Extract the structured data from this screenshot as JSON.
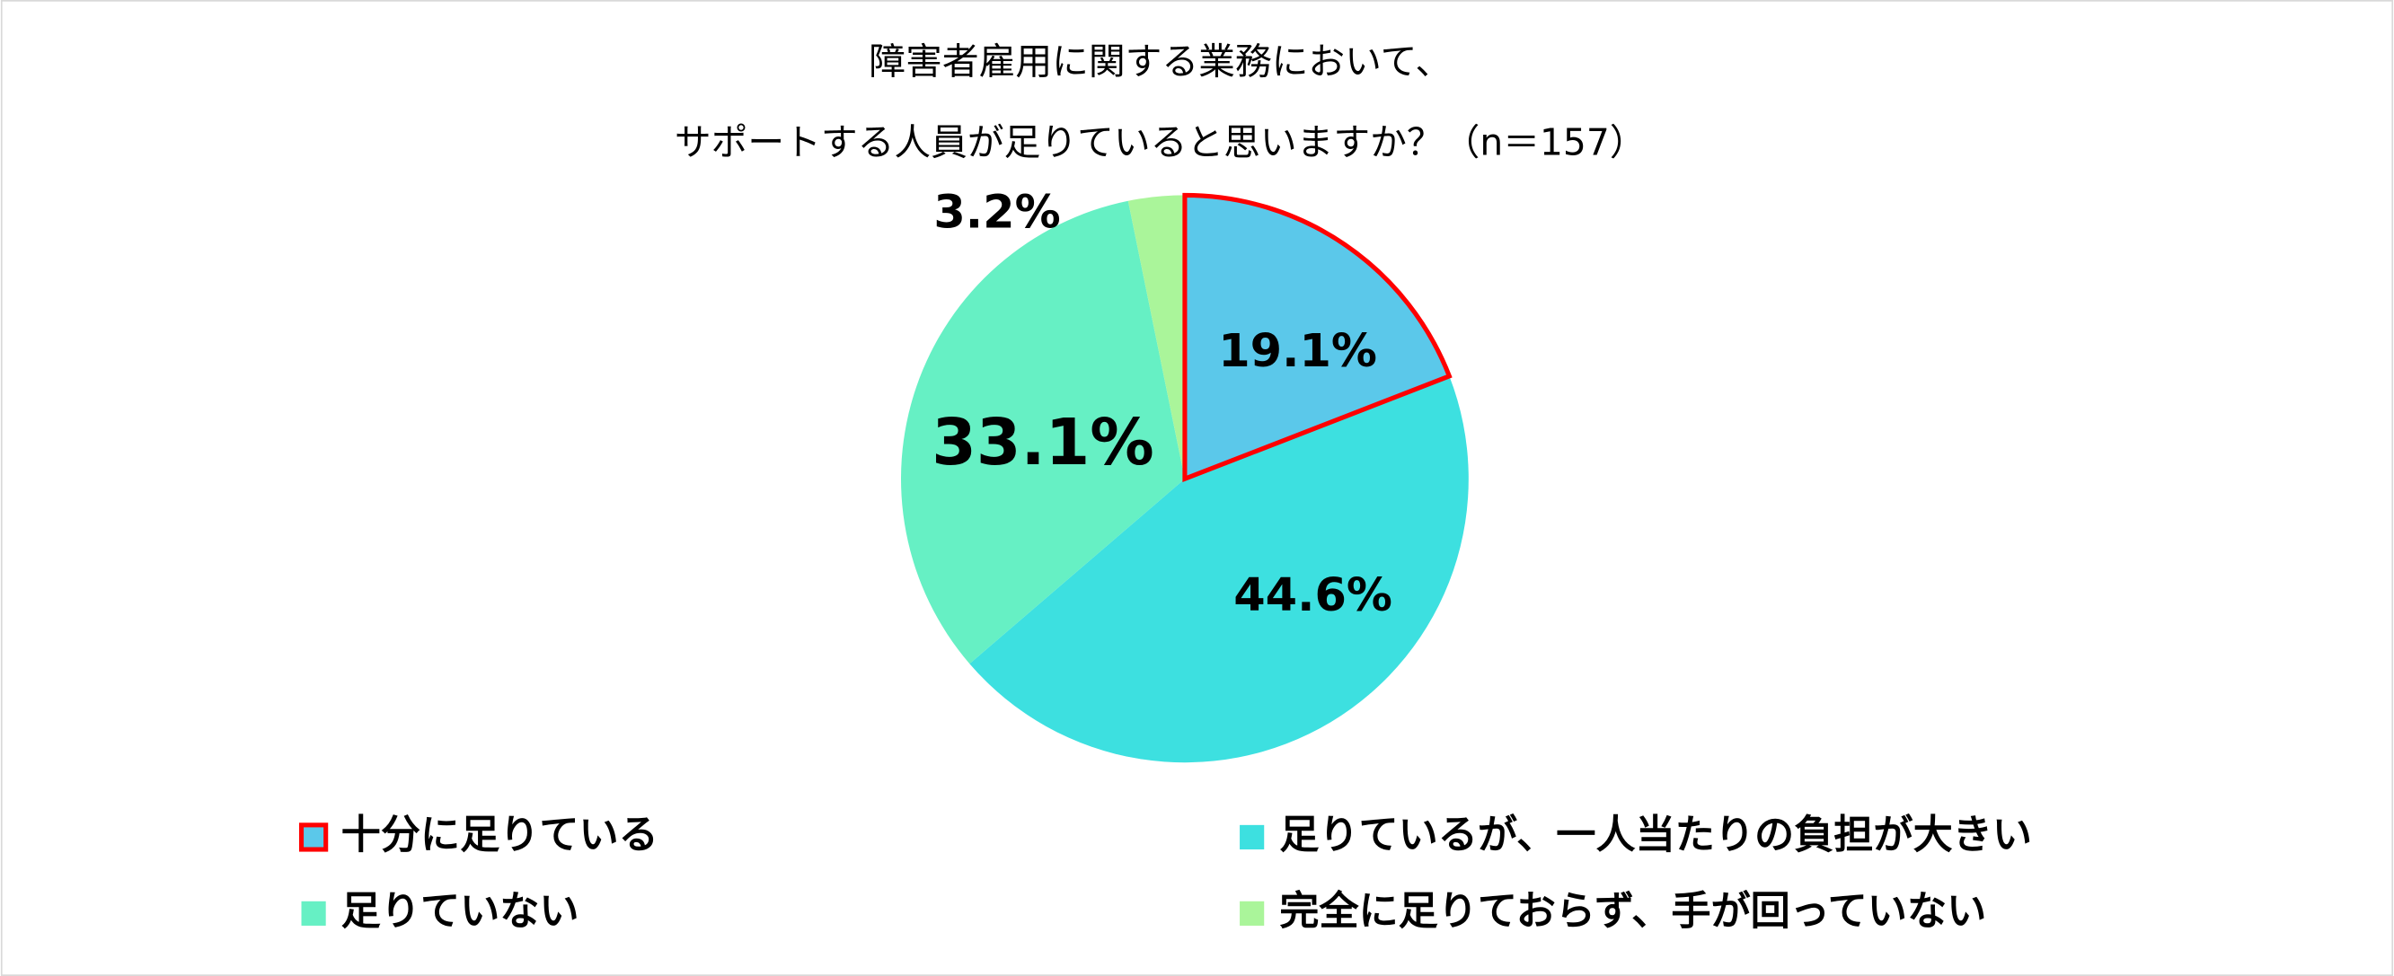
{
  "chart_data": {
    "type": "pie",
    "title": [
      "障害者雇用に関する業務において、",
      "サポートする人員が足りていると思いますか？（n＝157）"
    ],
    "categories": [
      "十分に足りている",
      "足りているが、一人当たりの負担が大きい",
      "足りていない",
      "完全に足りておらず、手が回っていない"
    ],
    "values": [
      19.1,
      44.6,
      33.1,
      3.2
    ],
    "value_labels": [
      "19.1%",
      "44.6%",
      "33.1%",
      "3.2%"
    ],
    "colors": [
      "#5bc8ea",
      "#3de0e0",
      "#66f0c4",
      "#aaf59a"
    ],
    "edgecolors": [
      "#ff0000",
      null,
      null,
      null
    ]
  }
}
